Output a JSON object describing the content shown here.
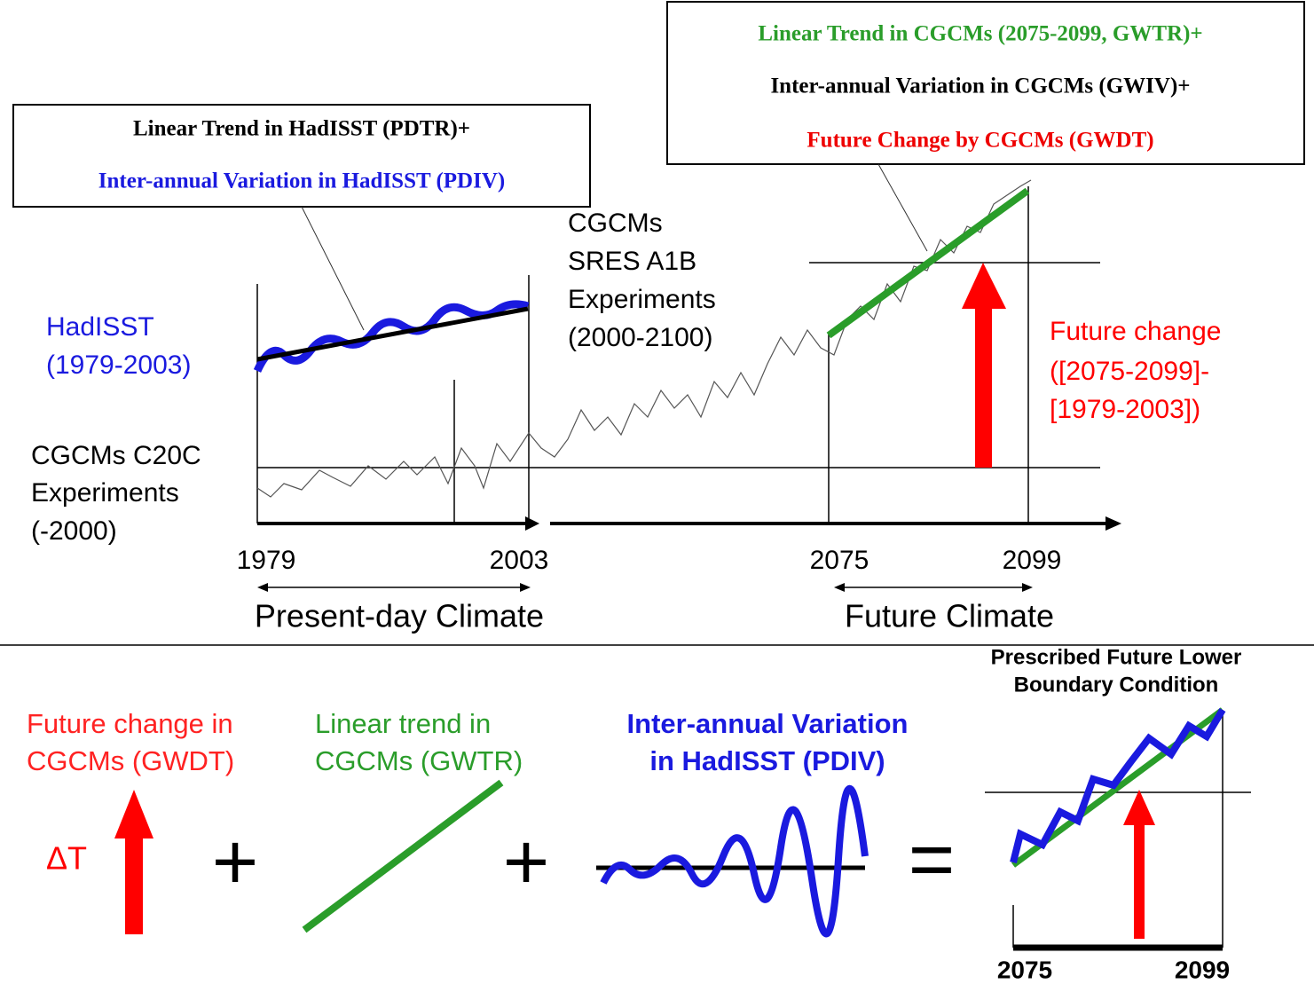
{
  "top": {
    "box_left": {
      "line1": "Linear Trend in HadISST (PDTR)+",
      "line2": "Inter-annual Variation in HadISST (PDIV)"
    },
    "box_right": {
      "line1": "Linear Trend in CGCMs (2075-2099, GWTR)+",
      "line2": "Inter-annual Variation in CGCMs (GWIV)+",
      "line3": "Future Change by CGCMs (GWDT)"
    },
    "hadisst_label": [
      "HadISST",
      "(1979-2003)"
    ],
    "sres_label": [
      "CGCMs",
      "SRES A1B",
      "Experiments",
      "(2000-2100)"
    ],
    "c20c_label": [
      "CGCMs C20C",
      "Experiments",
      "(-2000)"
    ],
    "future_change_label": [
      "Future change",
      "([2075-2099]-",
      "[1979-2003])"
    ],
    "years": [
      "1979",
      "2003",
      "2075",
      "2099"
    ],
    "periods": [
      "Present-day Climate",
      "Future Climate"
    ]
  },
  "bottom": {
    "term1": [
      "Future change in",
      "CGCMs (GWDT)"
    ],
    "delta": "ΔT",
    "term2": [
      "Linear trend in",
      "CGCMs (GWTR)"
    ],
    "term3": [
      "Inter-annual Variation",
      "in HadISST  (PDIV)"
    ],
    "plus": [
      "+",
      "+"
    ],
    "equals": "=",
    "result_title": [
      "Prescribed Future Lower",
      "Boundary Condition"
    ],
    "result_years": [
      "2075",
      "2099"
    ]
  }
}
